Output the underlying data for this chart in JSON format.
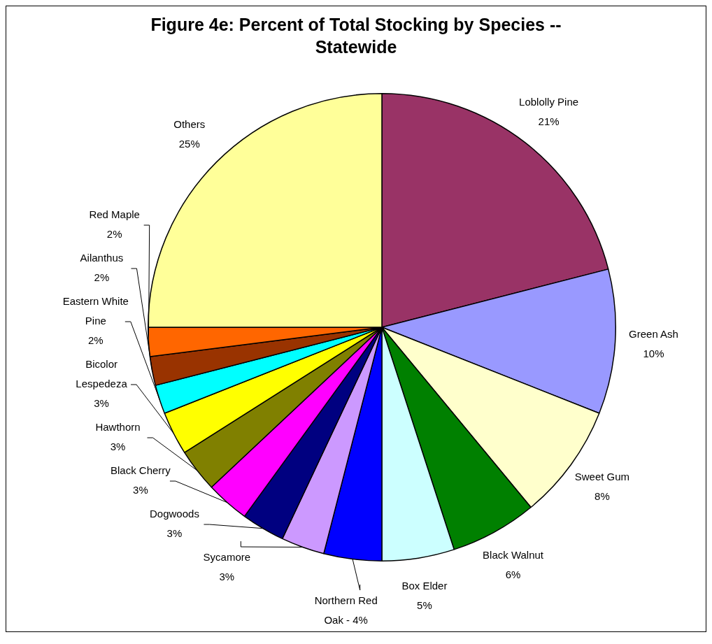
{
  "chart_data": {
    "type": "pie",
    "title": "Figure 4e:  Percent of Total Stocking by Species -- Statewide",
    "categories": [
      "Loblolly Pine",
      "Green Ash",
      "Sweet Gum",
      "Black Walnut",
      "Box Elder",
      "Northern Red Oak - 4%",
      "Sycamore",
      "Dogwoods",
      "Black Cherry",
      "Hawthorn",
      "Bicolor Lespedeza",
      "Eastern White Pine",
      "Ailanthus",
      "Red Maple",
      "Others"
    ],
    "values": [
      21,
      10,
      8,
      6,
      5,
      4,
      3,
      3,
      3,
      3,
      3,
      2,
      2,
      2,
      25
    ],
    "value_labels": [
      "21%",
      "10%",
      "8%",
      "6%",
      "5%",
      null,
      "3%",
      "3%",
      "3%",
      "3%",
      "3%",
      "2%",
      "2%",
      "2%",
      "25%"
    ],
    "colors": [
      "#993366",
      "#9999ff",
      "#ffffcc",
      "#008000",
      "#ccffff",
      "#0000ff",
      "#cc99ff",
      "#000080",
      "#ff00ff",
      "#808000",
      "#ffff00",
      "#00ffff",
      "#993300",
      "#ff6600",
      "#ffff99"
    ],
    "legend": false
  }
}
